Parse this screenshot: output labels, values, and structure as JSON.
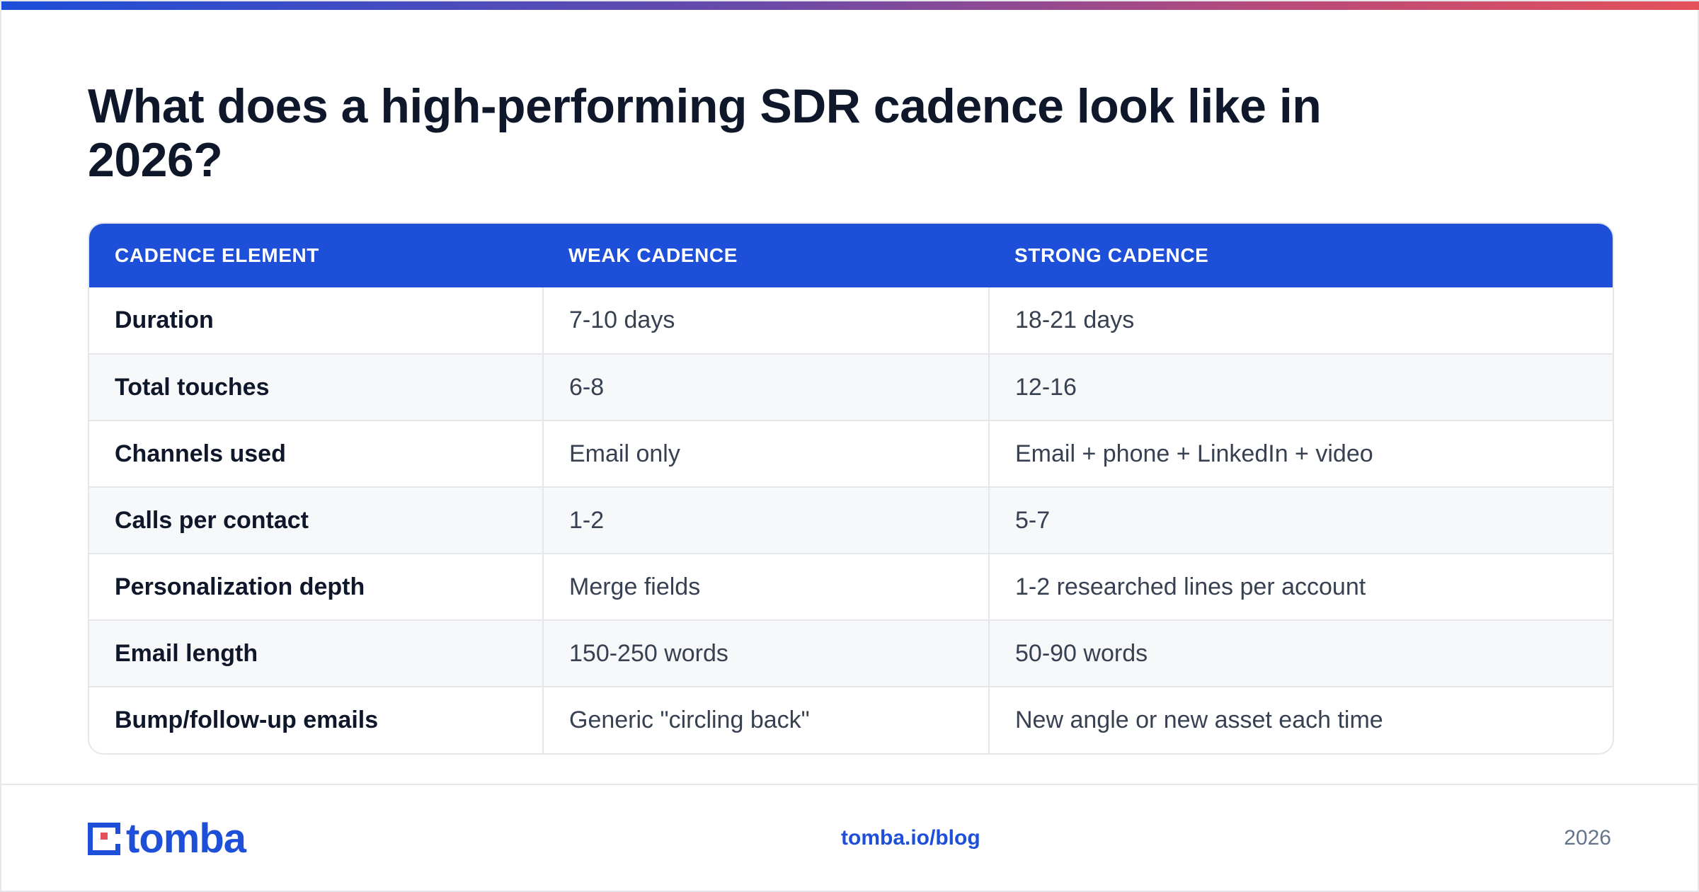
{
  "title": "What does a high-performing SDR cadence look like in 2026?",
  "table": {
    "headers": [
      "CADENCE ELEMENT",
      "WEAK CADENCE",
      "STRONG CADENCE"
    ],
    "rows": [
      [
        "Duration",
        "7-10 days",
        "18-21 days"
      ],
      [
        "Total touches",
        "6-8",
        "12-16"
      ],
      [
        "Channels used",
        "Email only",
        "Email + phone + LinkedIn + video"
      ],
      [
        "Calls per contact",
        "1-2",
        "5-7"
      ],
      [
        "Personalization depth",
        "Merge fields",
        "1-2 researched lines per account"
      ],
      [
        "Email length",
        "150-250 words",
        "50-90 words"
      ],
      [
        "Bump/follow-up emails",
        "Generic \"circling back\"",
        "New angle or new asset each time"
      ]
    ]
  },
  "footer": {
    "logo_text": "tomba",
    "link": "tomba.io/blog",
    "year": "2026"
  },
  "colors": {
    "accent": "#1d4fd8",
    "accent_red": "#e4515a",
    "heading": "#0f172a",
    "body_text": "#374151"
  }
}
